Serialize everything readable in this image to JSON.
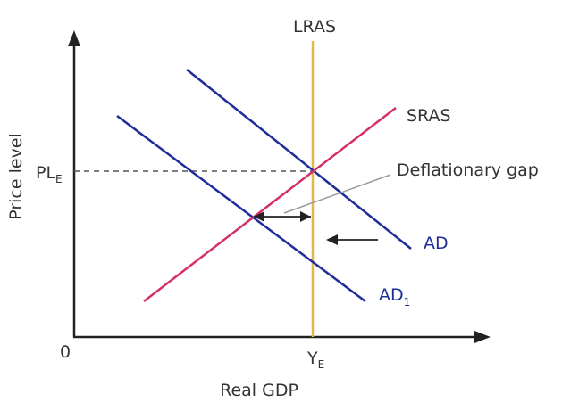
{
  "labels": {
    "lras": "LRAS",
    "sras": "SRAS",
    "ad": "AD",
    "ad1_main": "AD",
    "ad1_sub": "1",
    "price_level_main": "PL",
    "price_level_sub": "E",
    "ye_main": "Y",
    "ye_sub": "E",
    "origin": "0",
    "x_axis": "Real GDP",
    "y_axis": "Price level",
    "annotation": "Deflationary gap"
  },
  "colors": {
    "axis": "#222222",
    "lras": "#e3b84a",
    "sras": "#d62f63",
    "ad": "#1f2d9b",
    "arrow": "#222222",
    "dashed": "#555555",
    "pointer": "#999999"
  }
}
